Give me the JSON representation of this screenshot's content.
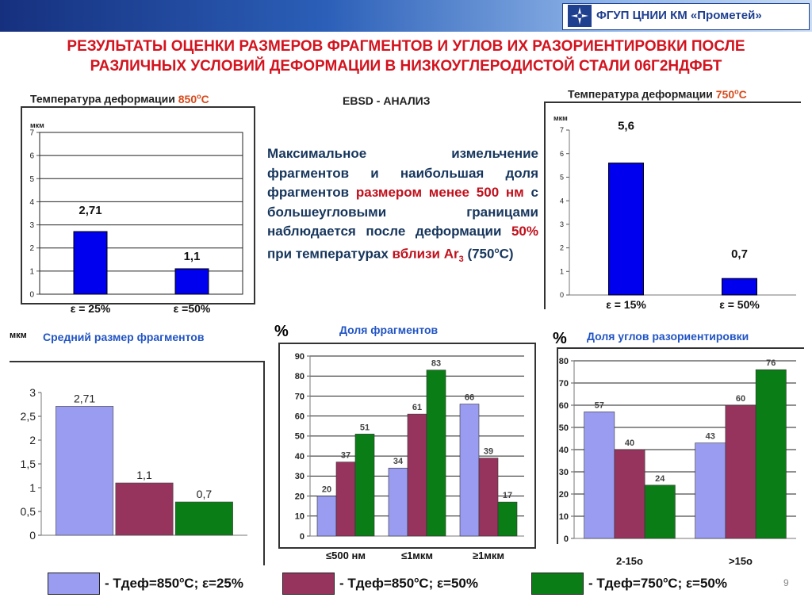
{
  "header": {
    "org_name": "ФГУП ЦНИИ КМ «Прометей»",
    "logo_icon": "prometey-emblem-icon",
    "page_number": "9"
  },
  "title": {
    "line1": "РЕЗУЛЬТАТЫ ОЦЕНКИ РАЗМЕРОВ ФРАГМЕНТОВ И УГЛОВ ИХ РАЗОРИЕНТИРОВКИ ПОСЛЕ",
    "line2": "РАЗЛИЧНЫХ УСЛОВИЙ ДЕФОРМАЦИИ В НИЗКОУГЛЕРОДИСТОЙ СТАЛИ   06Г2НДФБТ"
  },
  "captions": {
    "t850_prefix": "Температура деформации ",
    "t850_value": "850",
    "t750_prefix": "Температура деформации ",
    "t750_value": "750",
    "deg_sup": "о",
    "deg_c": "С",
    "ebsd": "EBSD - АНАЛИЗ"
  },
  "description": {
    "p1": "Максимальное измельчение фрагментов и наибольшая доля фрагментов ",
    "p2": "размером менее 500 нм",
    "p3": " с большеугловыми границами наблюдается после деформации ",
    "p4": "50%",
    "p5": " при температурах ",
    "p6": "вблизи Ar",
    "p6_sub": "3",
    "p7": " (750",
    "p7_sup": "о",
    "p7_end": "С)"
  },
  "section_labels": {
    "mkm": "мкм",
    "avg_size": "Средний размер фрагментов",
    "pct1": "%",
    "frag_share": "Доля фрагментов",
    "pct2": "%",
    "angle_share": "Доля углов разориентировки"
  },
  "legend": [
    {
      "label": "- Тдеф=850",
      "sup": "о",
      "rest": "С; ε=25%",
      "color": "#9a9cf2"
    },
    {
      "label": "- Тдеф=850",
      "sup": "о",
      "rest": "С; ε=50%",
      "color": "#96345e"
    },
    {
      "label": "- Тдеф=750",
      "sup": "о",
      "rest": "С; ε=50%",
      "color": "#0b7d16"
    }
  ],
  "colors": {
    "blue_bar": "#0000ee",
    "series1": "#9a9cf2",
    "series2": "#96345e",
    "series3": "#0b7d16",
    "title_red": "#d3131e",
    "text_blue": "#2154c4"
  },
  "chart_data": [
    {
      "type": "bar",
      "ylabel": "мкм",
      "categories": [
        "ε = 25%",
        "ε =50%"
      ],
      "values": [
        2.71,
        1.1
      ],
      "value_labels": [
        "2,71",
        "1,1"
      ],
      "ylim": [
        0,
        7
      ],
      "yticks": [
        "0",
        "1",
        "2",
        "3",
        "4",
        "5",
        "6",
        "7"
      ],
      "color": "#0000ee",
      "grid": true
    },
    {
      "type": "bar",
      "ylabel": "мкм",
      "categories": [
        "ε = 15%",
        "ε = 50%"
      ],
      "values": [
        5.6,
        0.7
      ],
      "value_labels": [
        "5,6",
        "0,7"
      ],
      "ylim": [
        0,
        7
      ],
      "yticks": [
        "0",
        "1",
        "2",
        "3",
        "4",
        "5",
        "6",
        "7"
      ],
      "color": "#0000ee",
      "grid": false
    },
    {
      "type": "bar",
      "categories": [
        ""
      ],
      "series": [
        {
          "name": "Тдеф=850оС; ε=25%",
          "values": [
            2.71
          ],
          "label": "2,71",
          "color": "#9a9cf2"
        },
        {
          "name": "Тдеф=850оС; ε=50%",
          "values": [
            1.1
          ],
          "label": "1,1",
          "color": "#96345e"
        },
        {
          "name": "Тдеф=750оС; ε=50%",
          "values": [
            0.7
          ],
          "label": "0,7",
          "color": "#0b7d16"
        }
      ],
      "ylim": [
        0,
        3
      ],
      "yticks": [
        "0",
        "0,5",
        "1",
        "1,5",
        "2",
        "2,5",
        "3"
      ],
      "grid": false
    },
    {
      "type": "bar",
      "categories": [
        "≤500 нм",
        "≤1мкм",
        "≥1мкм"
      ],
      "series": [
        {
          "name": "Тдеф=850оС; ε=25%",
          "values": [
            20,
            34,
            66
          ],
          "color": "#9a9cf2"
        },
        {
          "name": "Тдеф=850оС; ε=50%",
          "values": [
            37,
            61,
            39
          ],
          "color": "#96345e"
        },
        {
          "name": "Тдеф=750оС; ε=50%",
          "values": [
            51,
            83,
            17
          ],
          "color": "#0b7d16"
        }
      ],
      "ylim": [
        0,
        90
      ],
      "yticks": [
        "0",
        "10",
        "20",
        "30",
        "40",
        "50",
        "60",
        "70",
        "80",
        "90"
      ],
      "grid": true
    },
    {
      "type": "bar",
      "categories": [
        "2-15о",
        ">15о"
      ],
      "series": [
        {
          "name": "Тдеф=850оС; ε=25%",
          "values": [
            57,
            43
          ],
          "color": "#9a9cf2"
        },
        {
          "name": "Тдеф=850оС; ε=50%",
          "values": [
            40,
            60
          ],
          "color": "#96345e"
        },
        {
          "name": "Тдеф=750оС; ε=50%",
          "values": [
            24,
            76
          ],
          "color": "#0b7d16"
        }
      ],
      "ylim": [
        0,
        80
      ],
      "yticks": [
        "0",
        "10",
        "20",
        "30",
        "40",
        "50",
        "60",
        "70",
        "80"
      ],
      "grid": true
    }
  ]
}
